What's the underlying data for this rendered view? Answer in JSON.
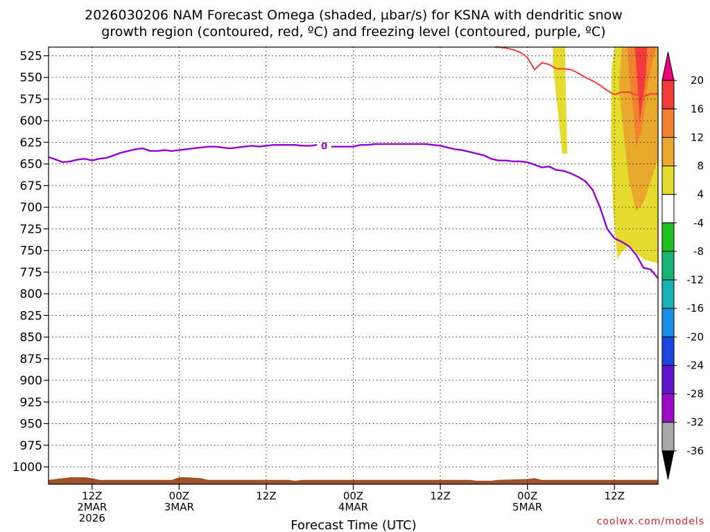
{
  "chart_data": {
    "type": "heatmap",
    "title_lines": [
      "2026030206 NAM Forecast Omega (shaded, µbar/s) for KSNA with dendritic snow",
      "growth region (contoured, red, ºC) and freezing level (contoured, purple, ºC)"
    ],
    "xlabel": "Forecast Time (UTC)",
    "credit": "coolwx.com/models",
    "x_axis": {
      "unit": "hours since 2026-03-02 06Z",
      "range": [
        0,
        84
      ],
      "ticks": [
        {
          "hour": 6,
          "lines": [
            "12Z",
            "2MAR",
            "2026"
          ]
        },
        {
          "hour": 18,
          "lines": [
            "00Z",
            "3MAR"
          ]
        },
        {
          "hour": 30,
          "lines": [
            "12Z"
          ]
        },
        {
          "hour": 42,
          "lines": [
            "00Z",
            "4MAR"
          ]
        },
        {
          "hour": 54,
          "lines": [
            "12Z"
          ]
        },
        {
          "hour": 66,
          "lines": [
            "00Z",
            "5MAR"
          ]
        },
        {
          "hour": 78,
          "lines": [
            "12Z"
          ]
        }
      ]
    },
    "y_axis": {
      "unit": "hPa",
      "range": [
        1020,
        515
      ],
      "ticks": [
        525,
        550,
        575,
        600,
        625,
        650,
        675,
        700,
        725,
        750,
        775,
        800,
        825,
        850,
        875,
        900,
        925,
        950,
        975,
        1000
      ]
    },
    "grid": true,
    "colorbar": {
      "labels": [
        "20",
        "16",
        "12",
        "8",
        "4",
        "-4",
        "-8",
        "-12",
        "-16",
        "-20",
        "-24",
        "-28",
        "-32",
        "-36"
      ],
      "colors": [
        "#e8007a",
        "#f23c3c",
        "#f2822d",
        "#e8a92d",
        "#e6dc2e",
        "#ffffff",
        "#1fbf1f",
        "#16b574",
        "#19b3b3",
        "#1b8fe6",
        "#1b46e0",
        "#5a16c8",
        "#9a0bc2",
        "#a8a8a8",
        "#000000"
      ]
    },
    "freezing_level": {
      "color": "#9400d3",
      "label": "0",
      "points": [
        [
          0,
          642
        ],
        [
          1,
          645
        ],
        [
          2,
          648
        ],
        [
          3,
          647
        ],
        [
          4,
          645
        ],
        [
          5,
          644
        ],
        [
          6,
          646
        ],
        [
          7,
          644
        ],
        [
          8,
          643
        ],
        [
          9,
          640
        ],
        [
          10,
          637
        ],
        [
          11,
          635
        ],
        [
          12,
          633
        ],
        [
          13,
          632
        ],
        [
          14,
          635
        ],
        [
          15,
          635
        ],
        [
          16,
          634
        ],
        [
          17,
          635
        ],
        [
          18,
          634
        ],
        [
          19,
          633
        ],
        [
          20,
          632
        ],
        [
          21,
          631
        ],
        [
          22,
          630
        ],
        [
          23,
          630
        ],
        [
          24,
          631
        ],
        [
          25,
          632
        ],
        [
          26,
          631
        ],
        [
          27,
          630
        ],
        [
          28,
          629
        ],
        [
          29,
          630
        ],
        [
          30,
          629
        ],
        [
          31,
          628
        ],
        [
          32,
          628
        ],
        [
          33,
          628
        ],
        [
          34,
          628
        ],
        [
          35,
          629
        ],
        [
          36,
          629
        ],
        [
          37,
          628
        ],
        [
          38,
          629
        ],
        [
          39,
          630
        ],
        [
          40,
          630
        ],
        [
          41,
          630
        ],
        [
          42,
          630
        ],
        [
          43,
          628
        ],
        [
          44,
          628
        ],
        [
          45,
          627
        ],
        [
          46,
          627
        ],
        [
          47,
          627
        ],
        [
          48,
          627
        ],
        [
          49,
          627
        ],
        [
          50,
          627
        ],
        [
          51,
          627
        ],
        [
          52,
          627
        ],
        [
          53,
          628
        ],
        [
          54,
          629
        ],
        [
          55,
          631
        ],
        [
          56,
          633
        ],
        [
          57,
          634
        ],
        [
          58,
          636
        ],
        [
          59,
          638
        ],
        [
          60,
          640
        ],
        [
          61,
          644
        ],
        [
          62,
          646
        ],
        [
          63,
          646
        ],
        [
          64,
          647
        ],
        [
          65,
          647
        ],
        [
          66,
          648
        ],
        [
          67,
          651
        ],
        [
          68,
          654
        ],
        [
          69,
          653
        ],
        [
          70,
          657
        ],
        [
          71,
          658
        ],
        [
          72,
          661
        ],
        [
          73,
          665
        ],
        [
          74,
          670
        ],
        [
          75,
          680
        ],
        [
          76,
          700
        ],
        [
          77,
          725
        ],
        [
          78,
          736
        ],
        [
          79,
          740
        ],
        [
          80,
          745
        ],
        [
          81,
          755
        ],
        [
          82,
          770
        ],
        [
          83,
          772
        ],
        [
          84,
          782
        ]
      ]
    },
    "dgz_contour": {
      "color": "#f23c3c",
      "points": [
        [
          61.5,
          515
        ],
        [
          62,
          515
        ],
        [
          63,
          516
        ],
        [
          64,
          518
        ],
        [
          65,
          521
        ],
        [
          66,
          527
        ],
        [
          67,
          541
        ],
        [
          68,
          533
        ],
        [
          69,
          535
        ],
        [
          70,
          540
        ],
        [
          71,
          540
        ],
        [
          72,
          541
        ],
        [
          73,
          545
        ],
        [
          74,
          550
        ],
        [
          75,
          554
        ],
        [
          76,
          559
        ],
        [
          77,
          565
        ],
        [
          78,
          570
        ],
        [
          79,
          567
        ],
        [
          80,
          567
        ],
        [
          81,
          570
        ],
        [
          82,
          572
        ],
        [
          83,
          569
        ],
        [
          84,
          569
        ]
      ]
    },
    "omega_regions": [
      {
        "level": "4 to 8",
        "color": "#e6dc2e",
        "polygon": [
          [
            69.5,
            515
          ],
          [
            71.2,
            515
          ],
          [
            71.2,
            535
          ],
          [
            71.5,
            638
          ],
          [
            70.8,
            638
          ],
          [
            69.5,
            535
          ]
        ]
      },
      {
        "level": "4 to 8",
        "color": "#e6dc2e",
        "polygon": [
          [
            78,
            515
          ],
          [
            84,
            515
          ],
          [
            84,
            765
          ],
          [
            82,
            760
          ],
          [
            80,
            745
          ],
          [
            79,
            752
          ],
          [
            78.4,
            760
          ],
          [
            77.8,
            700
          ],
          [
            77.5,
            620
          ],
          [
            77.6,
            540
          ]
        ]
      },
      {
        "level": "8 to 12",
        "color": "#e8a92d",
        "polygon": [
          [
            79,
            515
          ],
          [
            84,
            515
          ],
          [
            84,
            645
          ],
          [
            82,
            695
          ],
          [
            81,
            705
          ],
          [
            80,
            670
          ],
          [
            79.2,
            610
          ],
          [
            78.6,
            560
          ]
        ]
      },
      {
        "level": "12 to 16",
        "color": "#f2822d",
        "polygon": [
          [
            79.8,
            515
          ],
          [
            83.7,
            515
          ],
          [
            82.5,
            560
          ],
          [
            81.8,
            610
          ],
          [
            81,
            630
          ],
          [
            80.6,
            590
          ],
          [
            80,
            545
          ]
        ]
      },
      {
        "level": "16 to 20",
        "color": "#f23c3c",
        "polygon": [
          [
            80.8,
            515
          ],
          [
            82.5,
            515
          ],
          [
            82.3,
            550
          ],
          [
            81.5,
            600
          ],
          [
            81.2,
            560
          ]
        ]
      }
    ],
    "surface": {
      "color": "#a0522d",
      "points": [
        [
          0,
          1015
        ],
        [
          2,
          1013
        ],
        [
          3,
          1012
        ],
        [
          5,
          1012
        ],
        [
          6,
          1013
        ],
        [
          7,
          1015
        ],
        [
          17,
          1015
        ],
        [
          18,
          1012
        ],
        [
          19,
          1012
        ],
        [
          21,
          1013
        ],
        [
          22,
          1015
        ],
        [
          33,
          1015
        ],
        [
          34,
          1016
        ],
        [
          35,
          1015
        ],
        [
          58,
          1015
        ],
        [
          59,
          1016
        ],
        [
          61,
          1016
        ],
        [
          62,
          1015
        ],
        [
          66,
          1014
        ],
        [
          67,
          1013
        ],
        [
          68,
          1015
        ],
        [
          84,
          1015
        ]
      ]
    }
  }
}
